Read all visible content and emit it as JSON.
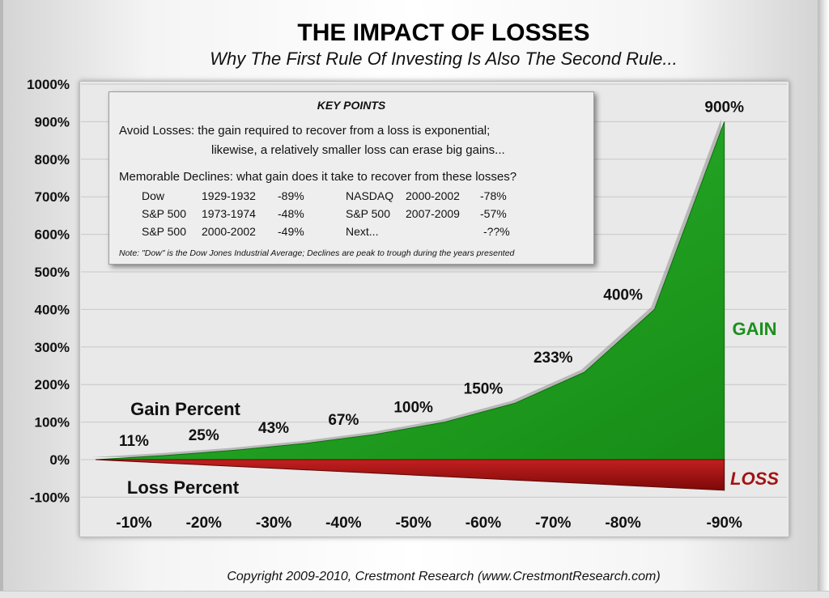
{
  "chart_data": {
    "type": "area",
    "title": "THE IMPACT OF LOSSES",
    "subtitle": "Why The First Rule Of Investing Is Also The Second Rule...",
    "categories": [
      "-10%",
      "-20%",
      "-30%",
      "-40%",
      "-50%",
      "-60%",
      "-70%",
      "-80%",
      "-90%"
    ],
    "series": [
      {
        "name": "GAIN",
        "values": [
          11,
          25,
          43,
          67,
          100,
          150,
          233,
          400,
          900
        ],
        "color": "#1a9c1a"
      },
      {
        "name": "LOSS",
        "values": [
          -10,
          -20,
          -30,
          -40,
          -50,
          -60,
          -70,
          -80,
          -90
        ],
        "color": "#9e0f0f"
      }
    ],
    "data_labels": [
      "11%",
      "25%",
      "43%",
      "67%",
      "100%",
      "150%",
      "233%",
      "400%",
      "900%"
    ],
    "y_ticks": [
      "1000%",
      "900%",
      "800%",
      "700%",
      "600%",
      "500%",
      "400%",
      "300%",
      "200%",
      "100%",
      "0%",
      "-100%"
    ],
    "ylim": [
      -100,
      1000
    ],
    "grid": true,
    "annotations": {
      "gain_percent": "Gain Percent",
      "loss_percent": "Loss Percent",
      "gain": "GAIN",
      "loss": "LOSS"
    }
  },
  "key_points": {
    "title": "KEY POINTS",
    "line1": "Avoid Losses:  the gain required to recover from a loss is exponential;",
    "line2": "likewise, a relatively smaller loss can erase big gains...",
    "line3": "Memorable Declines:  what gain does it take to recover from these losses?",
    "rows": [
      {
        "a_name": "Dow",
        "a_years": "1929-1932",
        "a_pct": "-89%",
        "b_name": "NASDAQ",
        "b_years": "2000-2002",
        "b_pct": "-78%"
      },
      {
        "a_name": "S&P 500",
        "a_years": "1973-1974",
        "a_pct": "-48%",
        "b_name": "S&P 500",
        "b_years": "2007-2009",
        "b_pct": "-57%"
      },
      {
        "a_name": "S&P 500",
        "a_years": "2000-2002",
        "a_pct": "-49%",
        "b_name": "Next...",
        "b_years": "",
        "b_pct": "-??%"
      }
    ],
    "note": "Note: \"Dow\" is the Dow Jones Industrial Average; Declines are peak to trough during the years presented"
  },
  "copyright": "Copyright 2009-2010, Crestmont Research (www.CrestmontResearch.com)"
}
